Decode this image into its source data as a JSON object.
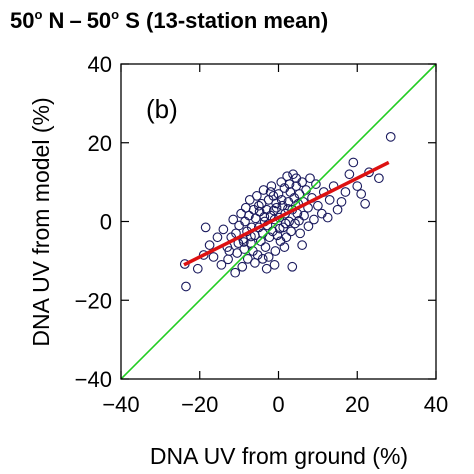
{
  "chart_data": {
    "type": "scatter",
    "title": {
      "part1": "50",
      "sup1": "o",
      "part2": " N",
      "dash": "–",
      "part3": "50",
      "sup2": "o",
      "part4": " S (13-station mean)"
    },
    "panel_label": "(b)",
    "xlabel": "DNA UV from ground (%)",
    "ylabel": "DNA UV from model (%)",
    "xlim": [
      -40,
      40
    ],
    "ylim": [
      -40,
      40
    ],
    "x_ticks": [
      -40,
      -20,
      0,
      20,
      40
    ],
    "y_ticks": [
      -40,
      -20,
      0,
      20,
      40
    ],
    "x_tick_labels": [
      "−40",
      "−20",
      "0",
      "20",
      "40"
    ],
    "y_tick_labels": [
      "−40",
      "−20",
      "0",
      "20",
      "40"
    ],
    "grid": false,
    "series": [
      {
        "kind": "points",
        "marker": "open-circle",
        "color": "#1a1a5e",
        "points": [
          [
            -23.5,
            -16.5
          ],
          [
            -23.8,
            -10.8
          ],
          [
            -20.5,
            -12
          ],
          [
            -19,
            -8.5
          ],
          [
            -18.5,
            -1.5
          ],
          [
            -17.5,
            -6
          ],
          [
            -16.5,
            -9
          ],
          [
            -15.5,
            -4
          ],
          [
            -14.5,
            -11
          ],
          [
            -14,
            -2
          ],
          [
            -13,
            -6.5
          ],
          [
            -12.5,
            -7.5
          ],
          [
            -12,
            -4
          ],
          [
            -11.5,
            0.5
          ],
          [
            -10.8,
            -3
          ],
          [
            -10.5,
            -8
          ],
          [
            -10.2,
            -5.5
          ],
          [
            -10,
            -1
          ],
          [
            -9.5,
            2
          ],
          [
            -9.2,
            -11.5
          ],
          [
            -9,
            -4.5
          ],
          [
            -8.7,
            -7
          ],
          [
            -8.5,
            0
          ],
          [
            -8.3,
            3.5
          ],
          [
            -8,
            -2.5
          ],
          [
            -7.8,
            -9.5
          ],
          [
            -7.5,
            1.5
          ],
          [
            -7.3,
            5.5
          ],
          [
            -7,
            -5.5
          ],
          [
            -6.8,
            -1.5
          ],
          [
            -6.5,
            -7.5
          ],
          [
            -6.3,
            3
          ],
          [
            -6,
            -3.5
          ],
          [
            -5.8,
            0.8
          ],
          [
            -5.5,
            6.5
          ],
          [
            -5.3,
            -8.5
          ],
          [
            -5,
            -1.5
          ],
          [
            -4.8,
            2.5
          ],
          [
            -4.5,
            -5
          ],
          [
            -4.3,
            4.5
          ],
          [
            -4,
            -3
          ],
          [
            -3.8,
            8
          ],
          [
            -3.5,
            0
          ],
          [
            -3.3,
            -6.5
          ],
          [
            -3,
            3
          ],
          [
            -2.8,
            -1
          ],
          [
            -2.5,
            5.5
          ],
          [
            -2.3,
            -4
          ],
          [
            -2,
            1.5
          ],
          [
            -1.8,
            9
          ],
          [
            -1.5,
            -2.5
          ],
          [
            -1.3,
            6.5
          ],
          [
            -1,
            0.5
          ],
          [
            -0.8,
            -7.5
          ],
          [
            -0.5,
            3.5
          ],
          [
            -0.3,
            -3.5
          ],
          [
            0,
            7
          ],
          [
            0.2,
            1
          ],
          [
            0.5,
            -5
          ],
          [
            0.7,
            10
          ],
          [
            1,
            4
          ],
          [
            1.2,
            -1.5
          ],
          [
            1.5,
            8.5
          ],
          [
            1.7,
            2
          ],
          [
            2,
            -4
          ],
          [
            2.2,
            11.5
          ],
          [
            2.5,
            5
          ],
          [
            2.7,
            0
          ],
          [
            3,
            7.5
          ],
          [
            3.2,
            -2.5
          ],
          [
            3.5,
            3
          ],
          [
            3.7,
            12
          ],
          [
            4,
            6
          ],
          [
            4.2,
            -0.5
          ],
          [
            4.5,
            9
          ],
          [
            4.8,
            2
          ],
          [
            5,
            4.5
          ],
          [
            5.3,
            7
          ],
          [
            5.5,
            -3
          ],
          [
            6,
            10
          ],
          [
            6.3,
            5
          ],
          [
            6.5,
            1.5
          ],
          [
            7,
            8
          ],
          [
            7.5,
            3.5
          ],
          [
            8,
            11
          ],
          [
            8.5,
            6
          ],
          [
            9,
            0.5
          ],
          [
            9.5,
            9.5
          ],
          [
            10,
            4
          ],
          [
            11,
            2
          ],
          [
            11.5,
            7.5
          ],
          [
            12.5,
            1
          ],
          [
            13,
            5.5
          ],
          [
            14,
            9
          ],
          [
            15,
            3
          ],
          [
            16,
            5
          ],
          [
            17,
            7.5
          ],
          [
            18,
            12
          ],
          [
            19,
            15
          ],
          [
            20,
            9
          ],
          [
            21,
            7
          ],
          [
            22,
            4.5
          ],
          [
            23,
            12.5
          ],
          [
            25.5,
            11
          ],
          [
            28.5,
            21.5
          ],
          [
            -2.5,
            -9
          ],
          [
            -4,
            -9.5
          ],
          [
            -1,
            -11
          ],
          [
            -6,
            -10.5
          ],
          [
            1.5,
            -6.5
          ],
          [
            3.5,
            -11.5
          ],
          [
            -3,
            -12
          ],
          [
            -11,
            -13
          ],
          [
            6,
            -6
          ],
          [
            -7,
            -3.8
          ],
          [
            -5,
            4
          ],
          [
            -2,
            7.5
          ],
          [
            0.8,
            5.5
          ],
          [
            2.8,
            9.5
          ],
          [
            4.5,
            11
          ],
          [
            -1.2,
            2.8
          ],
          [
            1.8,
            -0.5
          ],
          [
            -3.6,
            1.2
          ],
          [
            0.3,
            -1.8
          ],
          [
            2.4,
            3.2
          ],
          [
            -0.6,
            4.6
          ],
          [
            5.2,
            0.2
          ],
          [
            -8.8,
            -5.2
          ],
          [
            -12.8,
            -9.6
          ],
          [
            7.6,
            -1.2
          ]
        ]
      },
      {
        "kind": "line",
        "name": "",
        "color": "#22cc22",
        "points": [
          [
            -40,
            -40
          ],
          [
            40,
            40
          ]
        ]
      },
      {
        "kind": "line",
        "name": "",
        "color": "#dd1111",
        "points": [
          [
            -24,
            -11
          ],
          [
            28,
            15
          ]
        ]
      }
    ]
  }
}
